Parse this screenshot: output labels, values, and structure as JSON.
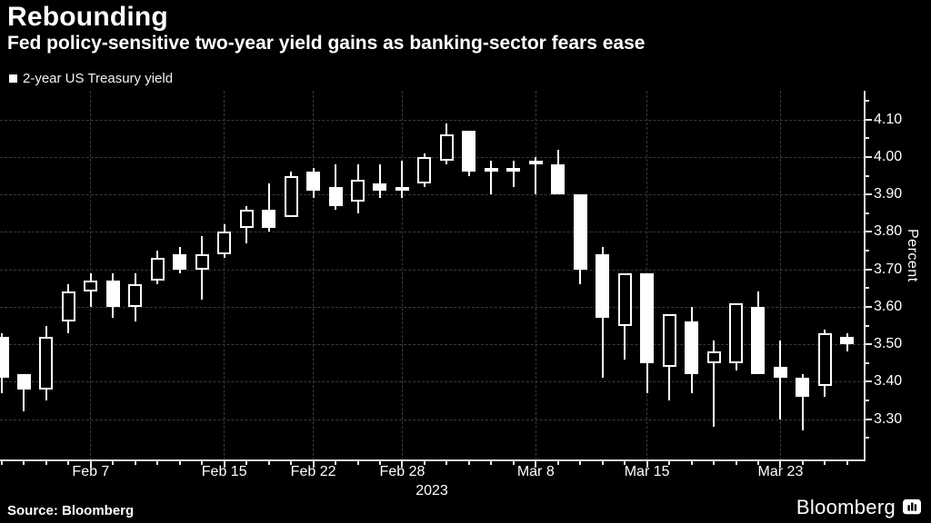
{
  "header": {
    "title": "Rebounding",
    "subtitle": "Fed policy-sensitive two-year yield gains as banking-sector fears ease"
  },
  "legend": {
    "label": "2-year US Treasury yield"
  },
  "chart_data": {
    "type": "candlestick",
    "title": "Rebounding",
    "series_name": "2-year US Treasury yield",
    "ylabel": "Percent",
    "ylim": [
      3.25,
      4.15
    ],
    "y_ticks": [
      4.1,
      4.0,
      3.9,
      3.8,
      3.7,
      3.6,
      3.5,
      3.4,
      3.3
    ],
    "x_year_label": "2023",
    "grid": "dashed",
    "x_ticks": [
      {
        "label": "Feb 7",
        "index": 4
      },
      {
        "label": "Feb 15",
        "index": 10
      },
      {
        "label": "Feb 22",
        "index": 14
      },
      {
        "label": "Feb 28",
        "index": 18
      },
      {
        "label": "Mar 8",
        "index": 24
      },
      {
        "label": "Mar 15",
        "index": 29
      },
      {
        "label": "Mar 23",
        "index": 35
      }
    ],
    "candles": [
      {
        "date": "Feb 1",
        "open": 3.52,
        "high": 3.53,
        "low": 3.37,
        "close": 3.41
      },
      {
        "date": "Feb 2",
        "open": 3.42,
        "high": 3.42,
        "low": 3.32,
        "close": 3.38
      },
      {
        "date": "Feb 3",
        "open": 3.38,
        "high": 3.55,
        "low": 3.35,
        "close": 3.52
      },
      {
        "date": "Feb 6",
        "open": 3.56,
        "high": 3.66,
        "low": 3.53,
        "close": 3.64
      },
      {
        "date": "Feb 7",
        "open": 3.64,
        "high": 3.69,
        "low": 3.6,
        "close": 3.67
      },
      {
        "date": "Feb 8",
        "open": 3.67,
        "high": 3.69,
        "low": 3.57,
        "close": 3.6
      },
      {
        "date": "Feb 9",
        "open": 3.6,
        "high": 3.69,
        "low": 3.56,
        "close": 3.66
      },
      {
        "date": "Feb 10",
        "open": 3.67,
        "high": 3.75,
        "low": 3.66,
        "close": 3.73
      },
      {
        "date": "Feb 13",
        "open": 3.74,
        "high": 3.76,
        "low": 3.69,
        "close": 3.7
      },
      {
        "date": "Feb 14",
        "open": 3.7,
        "high": 3.79,
        "low": 3.62,
        "close": 3.74
      },
      {
        "date": "Feb 15",
        "open": 3.74,
        "high": 3.82,
        "low": 3.73,
        "close": 3.8
      },
      {
        "date": "Feb 16",
        "open": 3.81,
        "high": 3.87,
        "low": 3.77,
        "close": 3.86
      },
      {
        "date": "Feb 17",
        "open": 3.86,
        "high": 3.93,
        "low": 3.8,
        "close": 3.81
      },
      {
        "date": "Feb 21",
        "open": 3.84,
        "high": 3.96,
        "low": 3.84,
        "close": 3.95
      },
      {
        "date": "Feb 22",
        "open": 3.96,
        "high": 3.97,
        "low": 3.89,
        "close": 3.91
      },
      {
        "date": "Feb 23",
        "open": 3.92,
        "high": 3.98,
        "low": 3.86,
        "close": 3.87
      },
      {
        "date": "Feb 24",
        "open": 3.88,
        "high": 3.98,
        "low": 3.85,
        "close": 3.94
      },
      {
        "date": "Feb 27",
        "open": 3.93,
        "high": 3.98,
        "low": 3.89,
        "close": 3.91
      },
      {
        "date": "Feb 28",
        "open": 3.92,
        "high": 3.99,
        "low": 3.89,
        "close": 3.92
      },
      {
        "date": "Mar 1",
        "open": 3.93,
        "high": 4.01,
        "low": 3.92,
        "close": 4.0
      },
      {
        "date": "Mar 2",
        "open": 3.99,
        "high": 4.09,
        "low": 3.98,
        "close": 4.06
      },
      {
        "date": "Mar 3",
        "open": 4.07,
        "high": 4.07,
        "low": 3.95,
        "close": 3.96
      },
      {
        "date": "Mar 6",
        "open": 3.97,
        "high": 3.99,
        "low": 3.9,
        "close": 3.96
      },
      {
        "date": "Mar 7",
        "open": 3.97,
        "high": 3.99,
        "low": 3.92,
        "close": 3.96
      },
      {
        "date": "Mar 8",
        "open": 3.98,
        "high": 4.0,
        "low": 3.9,
        "close": 3.99
      },
      {
        "date": "Mar 9",
        "open": 3.98,
        "high": 4.02,
        "low": 3.9,
        "close": 3.9
      },
      {
        "date": "Mar 10",
        "open": 3.9,
        "high": 3.9,
        "low": 3.66,
        "close": 3.7
      },
      {
        "date": "Mar 13",
        "open": 3.74,
        "high": 3.76,
        "low": 3.41,
        "close": 3.57
      },
      {
        "date": "Mar 14",
        "open": 3.55,
        "high": 3.69,
        "low": 3.46,
        "close": 3.69
      },
      {
        "date": "Mar 15",
        "open": 3.69,
        "high": 3.69,
        "low": 3.37,
        "close": 3.45
      },
      {
        "date": "Mar 16",
        "open": 3.44,
        "high": 3.58,
        "low": 3.35,
        "close": 3.58
      },
      {
        "date": "Mar 17",
        "open": 3.56,
        "high": 3.6,
        "low": 3.37,
        "close": 3.42
      },
      {
        "date": "Mar 20",
        "open": 3.45,
        "high": 3.51,
        "low": 3.28,
        "close": 3.48
      },
      {
        "date": "Mar 21",
        "open": 3.45,
        "high": 3.61,
        "low": 3.43,
        "close": 3.61
      },
      {
        "date": "Mar 22",
        "open": 3.6,
        "high": 3.64,
        "low": 3.42,
        "close": 3.42
      },
      {
        "date": "Mar 23",
        "open": 3.44,
        "high": 3.51,
        "low": 3.3,
        "close": 3.41
      },
      {
        "date": "Mar 24",
        "open": 3.41,
        "high": 3.42,
        "low": 3.27,
        "close": 3.36
      },
      {
        "date": "Mar 27",
        "open": 3.39,
        "high": 3.54,
        "low": 3.36,
        "close": 3.53
      },
      {
        "date": "Mar 28",
        "open": 3.52,
        "high": 3.53,
        "low": 3.48,
        "close": 3.5
      }
    ]
  },
  "footer": {
    "source": "Source: Bloomberg",
    "brand": "Bloomberg"
  },
  "colors": {
    "background": "#000000",
    "candle": "#ffffff",
    "grid": "#3a3a3a",
    "axis": "#d9d9d9",
    "text": "#ffffff"
  }
}
